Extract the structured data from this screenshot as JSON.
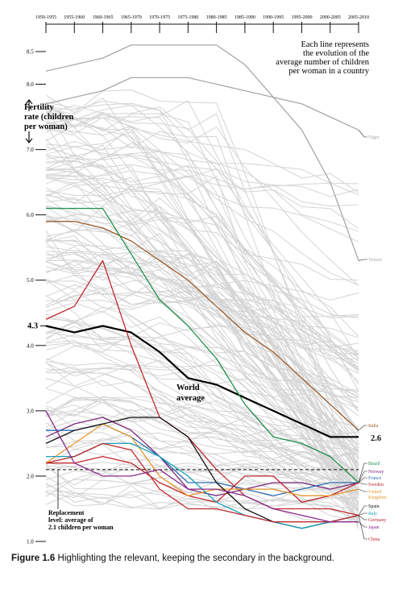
{
  "chart_data": {
    "type": "line",
    "x": [
      "1950-1955",
      "1955-1960",
      "1960-1965",
      "1965-1970",
      "1970-1975",
      "1975-1980",
      "1980-1985",
      "1985-1990",
      "1990-1995",
      "1995-2000",
      "2000-2005",
      "2005-2010"
    ],
    "y_ticks": [
      "8.5",
      "8.0",
      "7.0",
      "6.0",
      "5.0",
      "4.0",
      "3.0",
      "2.0",
      "1.0"
    ],
    "ylim": [
      1.0,
      8.5
    ],
    "ylabel": "Fertility rate (children per woman)",
    "annotation": "Each line represents the evolution of the average number of children per woman in a country",
    "replacement_label": "Replacement level: average of 2.1 children per woman",
    "replacement_value": 2.1,
    "world_label": "World average",
    "world_start_label": "4.3",
    "world_end_label": "2.6",
    "highlight_colors": {
      "world": "#000000",
      "india": "#9a5a2a",
      "china": "#c0282d",
      "brazil": "#1f8f4e",
      "norway": "#7a2a7a",
      "france": "#2a6fb0",
      "sweden": "#c0282d",
      "uk": "#e8962c",
      "spain": "#111111",
      "italy": "#1aa0b8",
      "germany": "#c0282d",
      "japan": "#8a2a8a",
      "background": "#d4d4d4"
    },
    "series": [
      {
        "name": "Niger",
        "values": [
          7.7,
          7.8,
          7.9,
          8.1,
          8.1,
          8.1,
          8.0,
          7.9,
          7.8,
          7.7,
          7.5,
          7.3
        ],
        "color": "#a8a8a8",
        "label": "Niger"
      },
      {
        "name": "Yemen",
        "values": [
          8.2,
          8.3,
          8.4,
          8.6,
          8.6,
          8.6,
          8.6,
          8.3,
          7.8,
          7.3,
          6.5,
          5.3
        ],
        "color": "#a8a8a8",
        "label": "Yemen"
      },
      {
        "name": "India",
        "values": [
          5.9,
          5.9,
          5.8,
          5.6,
          5.3,
          5.0,
          4.6,
          4.2,
          3.9,
          3.5,
          3.1,
          2.7
        ],
        "color": "#9a5a2a",
        "label": "India"
      },
      {
        "name": "World average",
        "values": [
          4.3,
          4.2,
          4.3,
          4.2,
          3.9,
          3.5,
          3.4,
          3.2,
          3.0,
          2.8,
          2.6,
          2.6
        ],
        "color": "#000000",
        "label": "2.6"
      },
      {
        "name": "Brazil",
        "values": [
          6.1,
          6.1,
          6.1,
          5.4,
          4.7,
          4.3,
          3.8,
          3.1,
          2.6,
          2.5,
          2.3,
          1.9
        ],
        "color": "#1f8f4e",
        "label": "Brazil"
      },
      {
        "name": "China",
        "values": [
          4.4,
          4.6,
          5.3,
          4.0,
          2.9,
          2.6,
          2.1,
          1.7,
          1.5,
          1.5,
          1.5,
          1.4
        ],
        "color": "#c0282d",
        "label": "China"
      },
      {
        "name": "Norway",
        "values": [
          2.6,
          2.8,
          2.9,
          2.7,
          2.3,
          1.8,
          1.7,
          1.8,
          1.9,
          1.9,
          1.8,
          1.9
        ],
        "color": "#7a2a7a",
        "label": "Norway"
      },
      {
        "name": "France",
        "values": [
          2.7,
          2.7,
          2.8,
          2.6,
          2.3,
          1.9,
          1.9,
          1.8,
          1.7,
          1.8,
          1.9,
          1.9
        ],
        "color": "#2a6fb0",
        "label": "France"
      },
      {
        "name": "Sweden",
        "values": [
          2.2,
          2.2,
          2.3,
          2.2,
          1.9,
          1.7,
          1.6,
          2.0,
          2.0,
          1.6,
          1.7,
          1.9
        ],
        "color": "#c0282d",
        "label": "Sweden"
      },
      {
        "name": "United Kingdom",
        "values": [
          2.2,
          2.5,
          2.8,
          2.6,
          2.0,
          1.7,
          1.8,
          1.8,
          1.8,
          1.7,
          1.7,
          1.8
        ],
        "color": "#e8962c",
        "label": "United Kingdom"
      },
      {
        "name": "Spain",
        "values": [
          2.5,
          2.7,
          2.8,
          2.9,
          2.9,
          2.6,
          1.9,
          1.5,
          1.3,
          1.2,
          1.3,
          1.4
        ],
        "color": "#111111",
        "label": "Spain"
      },
      {
        "name": "Italy",
        "values": [
          2.3,
          2.3,
          2.5,
          2.5,
          2.3,
          2.0,
          1.6,
          1.4,
          1.3,
          1.2,
          1.3,
          1.4
        ],
        "color": "#1aa0b8",
        "label": "Italy"
      },
      {
        "name": "Germany",
        "values": [
          2.2,
          2.3,
          2.5,
          2.4,
          1.8,
          1.5,
          1.5,
          1.4,
          1.3,
          1.3,
          1.3,
          1.4
        ],
        "color": "#c0282d",
        "label": "Germany"
      },
      {
        "name": "Japan",
        "values": [
          3.0,
          2.2,
          2.0,
          2.0,
          2.1,
          1.8,
          1.8,
          1.7,
          1.5,
          1.4,
          1.3,
          1.3
        ],
        "color": "#8a2a8a",
        "label": "Japan"
      }
    ]
  },
  "caption": {
    "figure": "Figure 1.6",
    "text": "Highlighting the relevant, keeping the secondary in the background."
  }
}
